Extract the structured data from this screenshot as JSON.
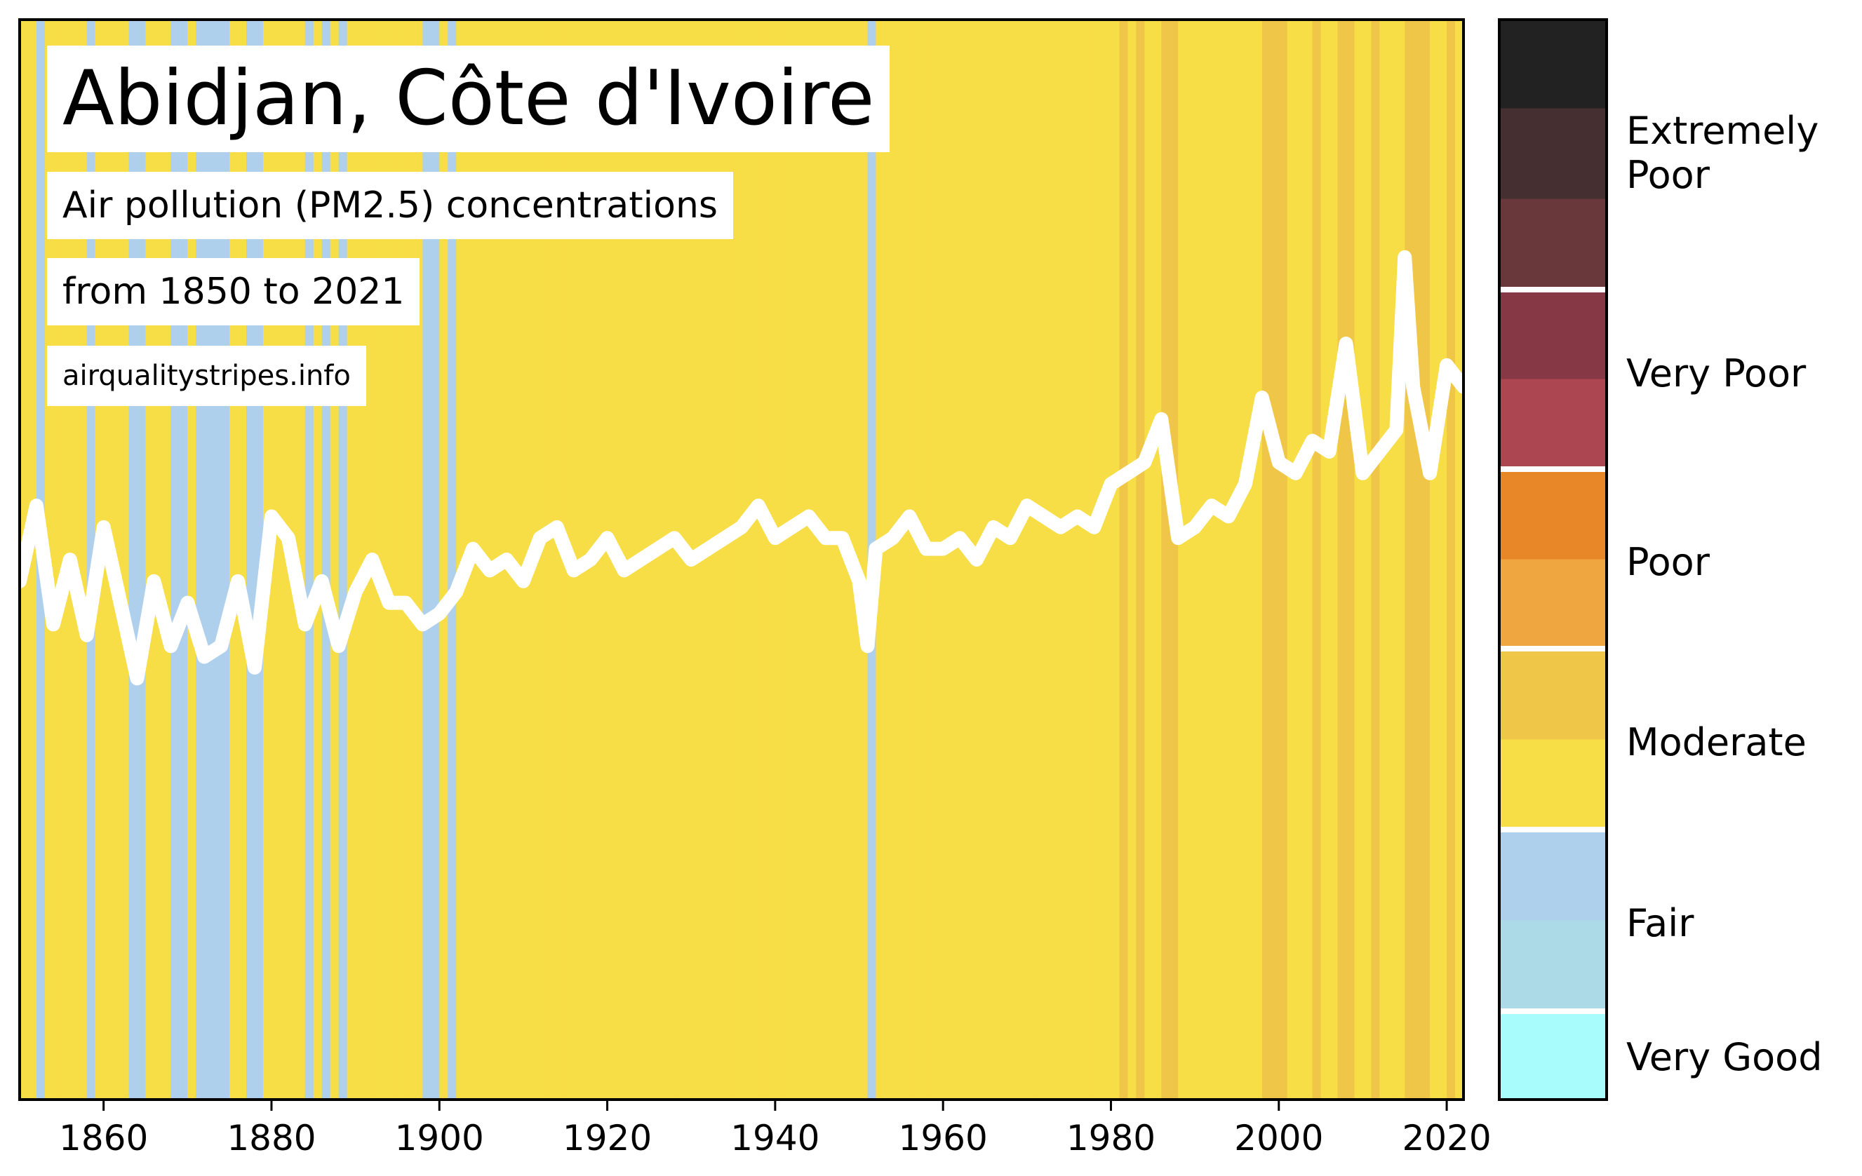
{
  "header": {
    "title": "Abidjan, Côte d'Ivoire",
    "subtitle": "Air pollution (PM2.5) concentrations",
    "period": "from 1850 to 2021",
    "source": "airqualitystripes.info"
  },
  "colors": {
    "very_good": "#a8fcfc",
    "fair_low": "#acdae6",
    "fair_high": "#afd0ec",
    "moderate_low": "#f7dd46",
    "moderate_high": "#f0c648",
    "poor_low": "#efa641",
    "poor_high": "#e78728",
    "very_poor_low": "#ac4651",
    "very_poor_high": "#873845",
    "extremely_poor_low": "#68383b",
    "extremely_poor_mid": "#452f30",
    "extremely_poor_high": "#222222",
    "line": "#ffffff"
  },
  "chart_data": {
    "type": "heatmap",
    "title": "Abidjan, Côte d'Ivoire",
    "xlabel": "",
    "ylabel": "",
    "xlim": [
      1850,
      2022
    ],
    "x_ticks": [
      1860,
      1880,
      1900,
      1920,
      1940,
      1960,
      1980,
      2000,
      2020
    ],
    "grid": false,
    "stripe_categories": [
      "Fair",
      "Moderate (low)",
      "Moderate (high)"
    ],
    "fair_years": [
      1852,
      1858,
      1863,
      1864,
      1868,
      1869,
      1871,
      1872,
      1873,
      1874,
      1877,
      1878,
      1884,
      1886,
      1888,
      1898,
      1899,
      1901,
      1951
    ],
    "moderate_high_years": [
      1981,
      1983,
      1986,
      1987,
      1998,
      1999,
      2000,
      2004,
      2007,
      2008,
      2011,
      2015,
      2016,
      2017,
      2020
    ],
    "line_series": {
      "years": [
        1850,
        1852,
        1854,
        1856,
        1858,
        1860,
        1862,
        1864,
        1866,
        1868,
        1870,
        1872,
        1874,
        1876,
        1878,
        1880,
        1882,
        1884,
        1886,
        1888,
        1890,
        1892,
        1894,
        1896,
        1898,
        1900,
        1902,
        1904,
        1906,
        1908,
        1910,
        1912,
        1914,
        1916,
        1918,
        1920,
        1922,
        1924,
        1926,
        1928,
        1930,
        1932,
        1934,
        1936,
        1938,
        1940,
        1942,
        1944,
        1946,
        1948,
        1950,
        1951,
        1952,
        1954,
        1956,
        1958,
        1960,
        1962,
        1964,
        1966,
        1968,
        1970,
        1972,
        1974,
        1976,
        1978,
        1980,
        1982,
        1984,
        1986,
        1988,
        1990,
        1992,
        1994,
        1996,
        1998,
        2000,
        2002,
        2004,
        2006,
        2008,
        2010,
        2012,
        2014,
        2015,
        2016,
        2018,
        2020,
        2022
      ],
      "relative": [
        0.48,
        0.55,
        0.44,
        0.5,
        0.43,
        0.53,
        0.46,
        0.39,
        0.48,
        0.42,
        0.46,
        0.41,
        0.42,
        0.48,
        0.4,
        0.54,
        0.52,
        0.44,
        0.48,
        0.42,
        0.47,
        0.5,
        0.46,
        0.46,
        0.44,
        0.45,
        0.47,
        0.51,
        0.49,
        0.5,
        0.48,
        0.52,
        0.53,
        0.49,
        0.5,
        0.52,
        0.49,
        0.5,
        0.51,
        0.52,
        0.5,
        0.51,
        0.52,
        0.53,
        0.55,
        0.52,
        0.53,
        0.54,
        0.52,
        0.52,
        0.48,
        0.42,
        0.51,
        0.52,
        0.54,
        0.51,
        0.51,
        0.52,
        0.5,
        0.53,
        0.52,
        0.55,
        0.54,
        0.53,
        0.54,
        0.53,
        0.57,
        0.58,
        0.59,
        0.63,
        0.52,
        0.53,
        0.55,
        0.54,
        0.57,
        0.65,
        0.59,
        0.58,
        0.61,
        0.6,
        0.7,
        0.58,
        0.6,
        0.62,
        0.78,
        0.66,
        0.58,
        0.68,
        0.66
      ]
    },
    "colorbar": {
      "categories": [
        "Very Good",
        "Fair",
        "Moderate",
        "Poor",
        "Very Poor",
        "Extremely Poor"
      ]
    }
  }
}
